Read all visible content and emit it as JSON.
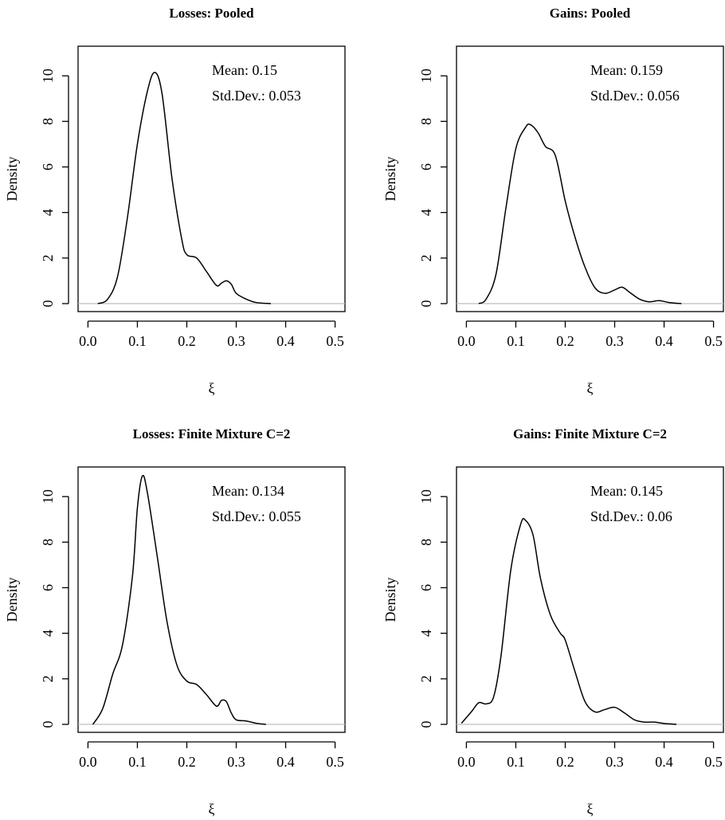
{
  "chart_data": [
    {
      "type": "line",
      "title": "Losses: Pooled",
      "xlabel": "ξ",
      "ylabel": "Density",
      "xlim": [
        -0.02,
        0.52
      ],
      "ylim": [
        -0.35,
        11.3
      ],
      "xticks": [
        "0.0",
        "0.1",
        "0.2",
        "0.3",
        "0.4",
        "0.5"
      ],
      "yticks": [
        "0",
        "2",
        "4",
        "6",
        "8",
        "10"
      ],
      "grid": false,
      "annotations": [
        "Mean: 0.15",
        "Std.Dev.: 0.053"
      ],
      "series": [
        {
          "x": [
            0.02,
            0.04,
            0.06,
            0.08,
            0.1,
            0.12,
            0.135,
            0.15,
            0.17,
            0.19,
            0.2,
            0.22,
            0.24,
            0.26,
            0.27,
            0.28,
            0.29,
            0.3,
            0.32,
            0.34,
            0.37
          ],
          "y": [
            0.0,
            0.2,
            1.2,
            3.8,
            7.0,
            9.3,
            10.15,
            9.2,
            5.5,
            2.8,
            2.15,
            2.0,
            1.4,
            0.8,
            0.9,
            1.0,
            0.85,
            0.45,
            0.2,
            0.05,
            0.0
          ]
        }
      ]
    },
    {
      "type": "line",
      "title": "Gains: Pooled",
      "xlabel": "ξ",
      "ylabel": "Density",
      "xlim": [
        -0.02,
        0.52
      ],
      "ylim": [
        -0.35,
        11.3
      ],
      "xticks": [
        "0.0",
        "0.1",
        "0.2",
        "0.3",
        "0.4",
        "0.5"
      ],
      "yticks": [
        "0",
        "2",
        "4",
        "6",
        "8",
        "10"
      ],
      "grid": false,
      "annotations": [
        "Mean: 0.159",
        "Std.Dev.: 0.056"
      ],
      "series": [
        {
          "x": [
            0.025,
            0.04,
            0.06,
            0.08,
            0.1,
            0.12,
            0.13,
            0.145,
            0.16,
            0.18,
            0.2,
            0.22,
            0.24,
            0.26,
            0.28,
            0.3,
            0.315,
            0.33,
            0.35,
            0.37,
            0.39,
            0.41,
            0.435
          ],
          "y": [
            0.0,
            0.2,
            1.3,
            4.2,
            6.8,
            7.75,
            7.85,
            7.5,
            6.9,
            6.5,
            4.5,
            2.9,
            1.6,
            0.7,
            0.45,
            0.6,
            0.72,
            0.5,
            0.2,
            0.08,
            0.13,
            0.05,
            0.0
          ]
        }
      ]
    },
    {
      "type": "line",
      "title": "Losses: Finite Mixture C=2",
      "xlabel": "ξ",
      "ylabel": "Density",
      "xlim": [
        -0.02,
        0.52
      ],
      "ylim": [
        -0.35,
        11.3
      ],
      "xticks": [
        "0.0",
        "0.1",
        "0.2",
        "0.3",
        "0.4",
        "0.5"
      ],
      "yticks": [
        "0",
        "2",
        "4",
        "6",
        "8",
        "10"
      ],
      "grid": false,
      "annotations": [
        "Mean: 0.134",
        "Std.Dev.: 0.055"
      ],
      "series": [
        {
          "x": [
            0.01,
            0.03,
            0.05,
            0.07,
            0.09,
            0.1,
            0.11,
            0.12,
            0.14,
            0.16,
            0.18,
            0.2,
            0.22,
            0.24,
            0.26,
            0.27,
            0.28,
            0.29,
            0.3,
            0.32,
            0.34,
            0.36
          ],
          "y": [
            0.0,
            0.7,
            2.2,
            3.5,
            6.5,
            9.5,
            10.9,
            10.2,
            7.4,
            4.5,
            2.6,
            1.9,
            1.75,
            1.3,
            0.8,
            1.05,
            1.0,
            0.5,
            0.2,
            0.15,
            0.05,
            0.0
          ]
        }
      ]
    },
    {
      "type": "line",
      "title": "Gains: Finite Mixture C=2",
      "xlabel": "ξ",
      "ylabel": "Density",
      "xlim": [
        -0.02,
        0.52
      ],
      "ylim": [
        -0.35,
        11.3
      ],
      "xticks": [
        "0.0",
        "0.1",
        "0.2",
        "0.3",
        "0.4",
        "0.5"
      ],
      "yticks": [
        "0",
        "2",
        "4",
        "6",
        "8",
        "10"
      ],
      "grid": false,
      "annotations": [
        "Mean: 0.145",
        "Std.Dev.: 0.06"
      ],
      "series": [
        {
          "x": [
            -0.01,
            0.01,
            0.025,
            0.04,
            0.055,
            0.07,
            0.09,
            0.11,
            0.12,
            0.135,
            0.15,
            0.17,
            0.19,
            0.2,
            0.22,
            0.24,
            0.26,
            0.28,
            0.3,
            0.32,
            0.34,
            0.36,
            0.38,
            0.4,
            0.425
          ],
          "y": [
            0.05,
            0.55,
            0.95,
            0.9,
            1.2,
            3.0,
            6.8,
            8.8,
            8.95,
            8.3,
            6.4,
            4.8,
            4.0,
            3.7,
            2.3,
            1.0,
            0.55,
            0.65,
            0.75,
            0.5,
            0.2,
            0.1,
            0.1,
            0.04,
            0.0
          ]
        }
      ]
    }
  ]
}
